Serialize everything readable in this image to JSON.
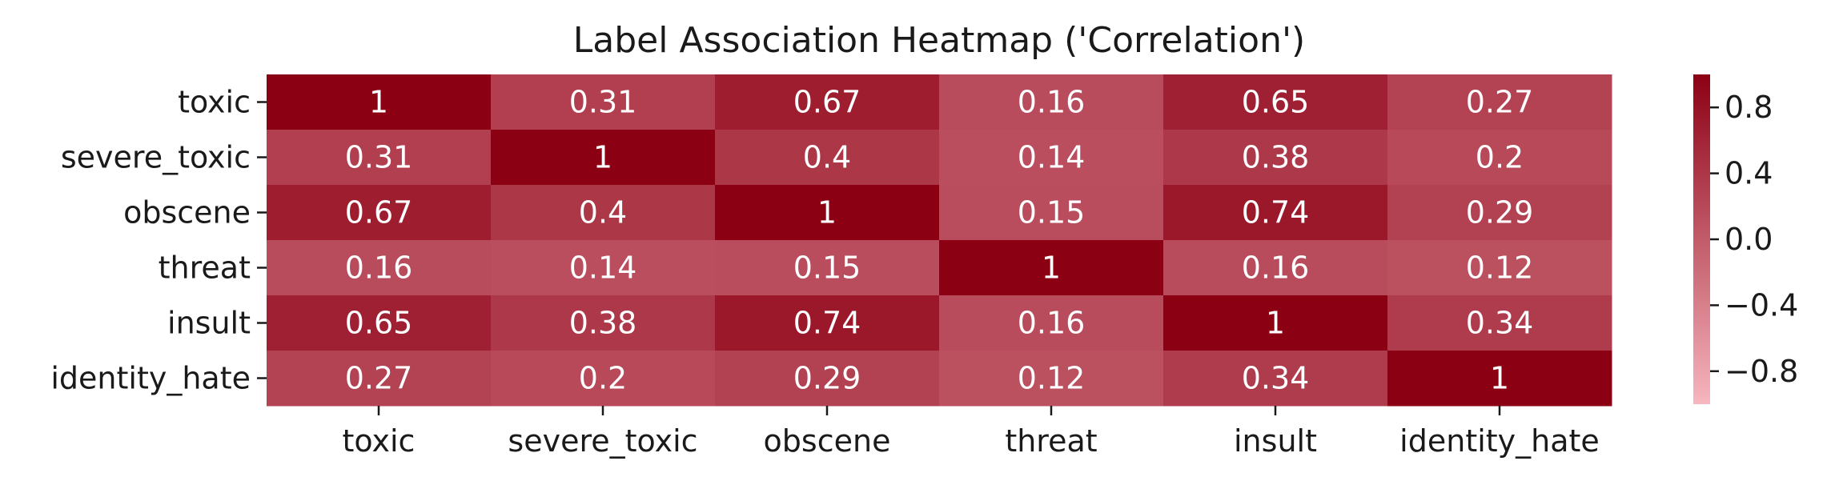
{
  "chart_data": {
    "type": "heatmap",
    "title": "Label Association Heatmap ('Correlation')",
    "rows": [
      "toxic",
      "severe_toxic",
      "obscene",
      "threat",
      "insult",
      "identity_hate"
    ],
    "columns": [
      "toxic",
      "severe_toxic",
      "obscene",
      "threat",
      "insult",
      "identity_hate"
    ],
    "values": [
      [
        1,
        0.31,
        0.67,
        0.16,
        0.65,
        0.27
      ],
      [
        0.31,
        1,
        0.4,
        0.14,
        0.38,
        0.2
      ],
      [
        0.67,
        0.4,
        1,
        0.15,
        0.74,
        0.29
      ],
      [
        0.16,
        0.14,
        0.15,
        1,
        0.16,
        0.12
      ],
      [
        0.65,
        0.38,
        0.74,
        0.16,
        1,
        0.34
      ],
      [
        0.27,
        0.2,
        0.29,
        0.12,
        0.34,
        1
      ]
    ],
    "value_labels": [
      [
        "1",
        "0.31",
        "0.67",
        "0.16",
        "0.65",
        "0.27"
      ],
      [
        "0.31",
        "1",
        "0.4",
        "0.14",
        "0.38",
        "0.2"
      ],
      [
        "0.67",
        "0.4",
        "1",
        "0.15",
        "0.74",
        "0.29"
      ],
      [
        "0.16",
        "0.14",
        "0.15",
        "1",
        "0.16",
        "0.12"
      ],
      [
        "0.65",
        "0.38",
        "0.74",
        "0.16",
        "1",
        "0.34"
      ],
      [
        "0.27",
        "0.2",
        "0.29",
        "0.12",
        "0.34",
        "1"
      ]
    ],
    "colorbar": {
      "vmin": -1,
      "vmax": 1,
      "ticks": [
        0.8,
        0.4,
        0.0,
        -0.4,
        -0.8
      ],
      "tick_labels": [
        "0.8",
        "0.4",
        "0.0",
        "−0.4",
        "−0.8"
      ],
      "color_low": "#f7b6bf",
      "color_high": "#8c0014"
    },
    "annotations_on": true,
    "grid": false,
    "legend": "colorbar-right"
  }
}
